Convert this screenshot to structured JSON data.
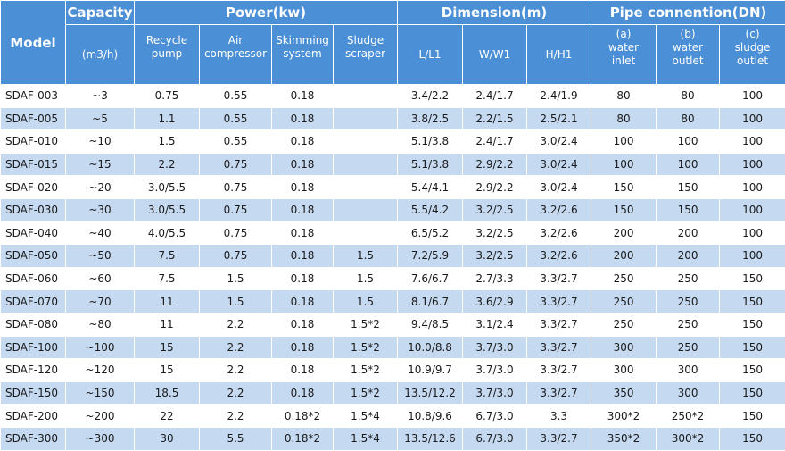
{
  "header": {
    "model": "Model",
    "capacity": "Capacity",
    "capacity_unit": "(m3/h)",
    "power": "Power(kw)",
    "dimension": "Dimension(m)",
    "pipe": "Pipe connention(DN)",
    "power_cols": [
      [
        "Recycle",
        "pump"
      ],
      [
        "Air",
        "compressor"
      ],
      [
        "Skimming",
        "system"
      ],
      [
        "Sludge",
        "scraper"
      ]
    ],
    "dimension_cols": [
      "L/L1",
      "W/W1",
      "H/H1"
    ],
    "pipe_cols": [
      [
        "(a)",
        "water",
        "inlet"
      ],
      [
        "(b)",
        "water",
        "outlet"
      ],
      [
        "(c)",
        "sludge",
        "outlet"
      ]
    ]
  },
  "rows": [
    [
      "SDAF-003",
      "~3",
      "0.75",
      "0.55",
      "0.18",
      "",
      "3.4/2.2",
      "2.4/1.7",
      "2.4/1.9",
      "80",
      "80",
      "100"
    ],
    [
      "SDAF-005",
      "~5",
      "1.1",
      "0.55",
      "0.18",
      "",
      "3.8/2.5",
      "2.2/1.5",
      "2.5/2.1",
      "80",
      "80",
      "100"
    ],
    [
      "SDAF-010",
      "~10",
      "1.5",
      "0.55",
      "0.18",
      "",
      "5.1/3.8",
      "2.4/1.7",
      "3.0/2.4",
      "100",
      "100",
      "100"
    ],
    [
      "SDAF-015",
      "~15",
      "2.2",
      "0.75",
      "0.18",
      "",
      "5.1/3.8",
      "2.9/2.2",
      "3.0/2.4",
      "100",
      "100",
      "100"
    ],
    [
      "SDAF-020",
      "~20",
      "3.0/5.5",
      "0.75",
      "0.18",
      "",
      "5.4/4.1",
      "2.9/2.2",
      "3.0/2.4",
      "150",
      "150",
      "100"
    ],
    [
      "SDAF-030",
      "~30",
      "3.0/5.5",
      "0.75",
      "0.18",
      "",
      "5.5/4.2",
      "3.2/2.5",
      "3.2/2.6",
      "150",
      "150",
      "100"
    ],
    [
      "SDAF-040",
      "~40",
      "4.0/5.5",
      "0.75",
      "0.18",
      "",
      "6.5/5.2",
      "3.2/2.5",
      "3.2/2.6",
      "200",
      "200",
      "100"
    ],
    [
      "SDAF-050",
      "~50",
      "7.5",
      "0.75",
      "0.18",
      "1.5",
      "7.2/5.9",
      "3.2/2.5",
      "3.2/2.6",
      "200",
      "200",
      "100"
    ],
    [
      "SDAF-060",
      "~60",
      "7.5",
      "1.5",
      "0.18",
      "1.5",
      "7.6/6.7",
      "2.7/3.3",
      "3.3/2.7",
      "250",
      "250",
      "150"
    ],
    [
      "SDAF-070",
      "~70",
      "11",
      "1.5",
      "0.18",
      "1.5",
      "8.1/6.7",
      "3.6/2.9",
      "3.3/2.7",
      "250",
      "250",
      "150"
    ],
    [
      "SDAF-080",
      "~80",
      "11",
      "2.2",
      "0.18",
      "1.5*2",
      "9.4/8.5",
      "3.1/2.4",
      "3.3/2.7",
      "250",
      "250",
      "150"
    ],
    [
      "SDAF-100",
      "~100",
      "15",
      "2.2",
      "0.18",
      "1.5*2",
      "10.0/8.8",
      "3.7/3.0",
      "3.3/2.7",
      "300",
      "250",
      "150"
    ],
    [
      "SDAF-120",
      "~120",
      "15",
      "2.2",
      "0.18",
      "1.5*2",
      "10.9/9.7",
      "3.7/3.0",
      "3.3/2.7",
      "300",
      "300",
      "150"
    ],
    [
      "SDAF-150",
      "~150",
      "18.5",
      "2.2",
      "0.18",
      "1.5*2",
      "13.5/12.2",
      "3.7/3.0",
      "3.3/2.7",
      "350",
      "300",
      "150"
    ],
    [
      "SDAF-200",
      "~200",
      "22",
      "2.2",
      "0.18*2",
      "1.5*4",
      "10.8/9.6",
      "6.7/3.0",
      "3.3",
      "300*2",
      "250*2",
      "150"
    ],
    [
      "SDAF-300",
      "~300",
      "30",
      "5.5",
      "0.18*2",
      "1.5*4",
      "13.5/12.6",
      "6.7/3.0",
      "3.3/2.7",
      "350*2",
      "300*2",
      "150"
    ]
  ]
}
